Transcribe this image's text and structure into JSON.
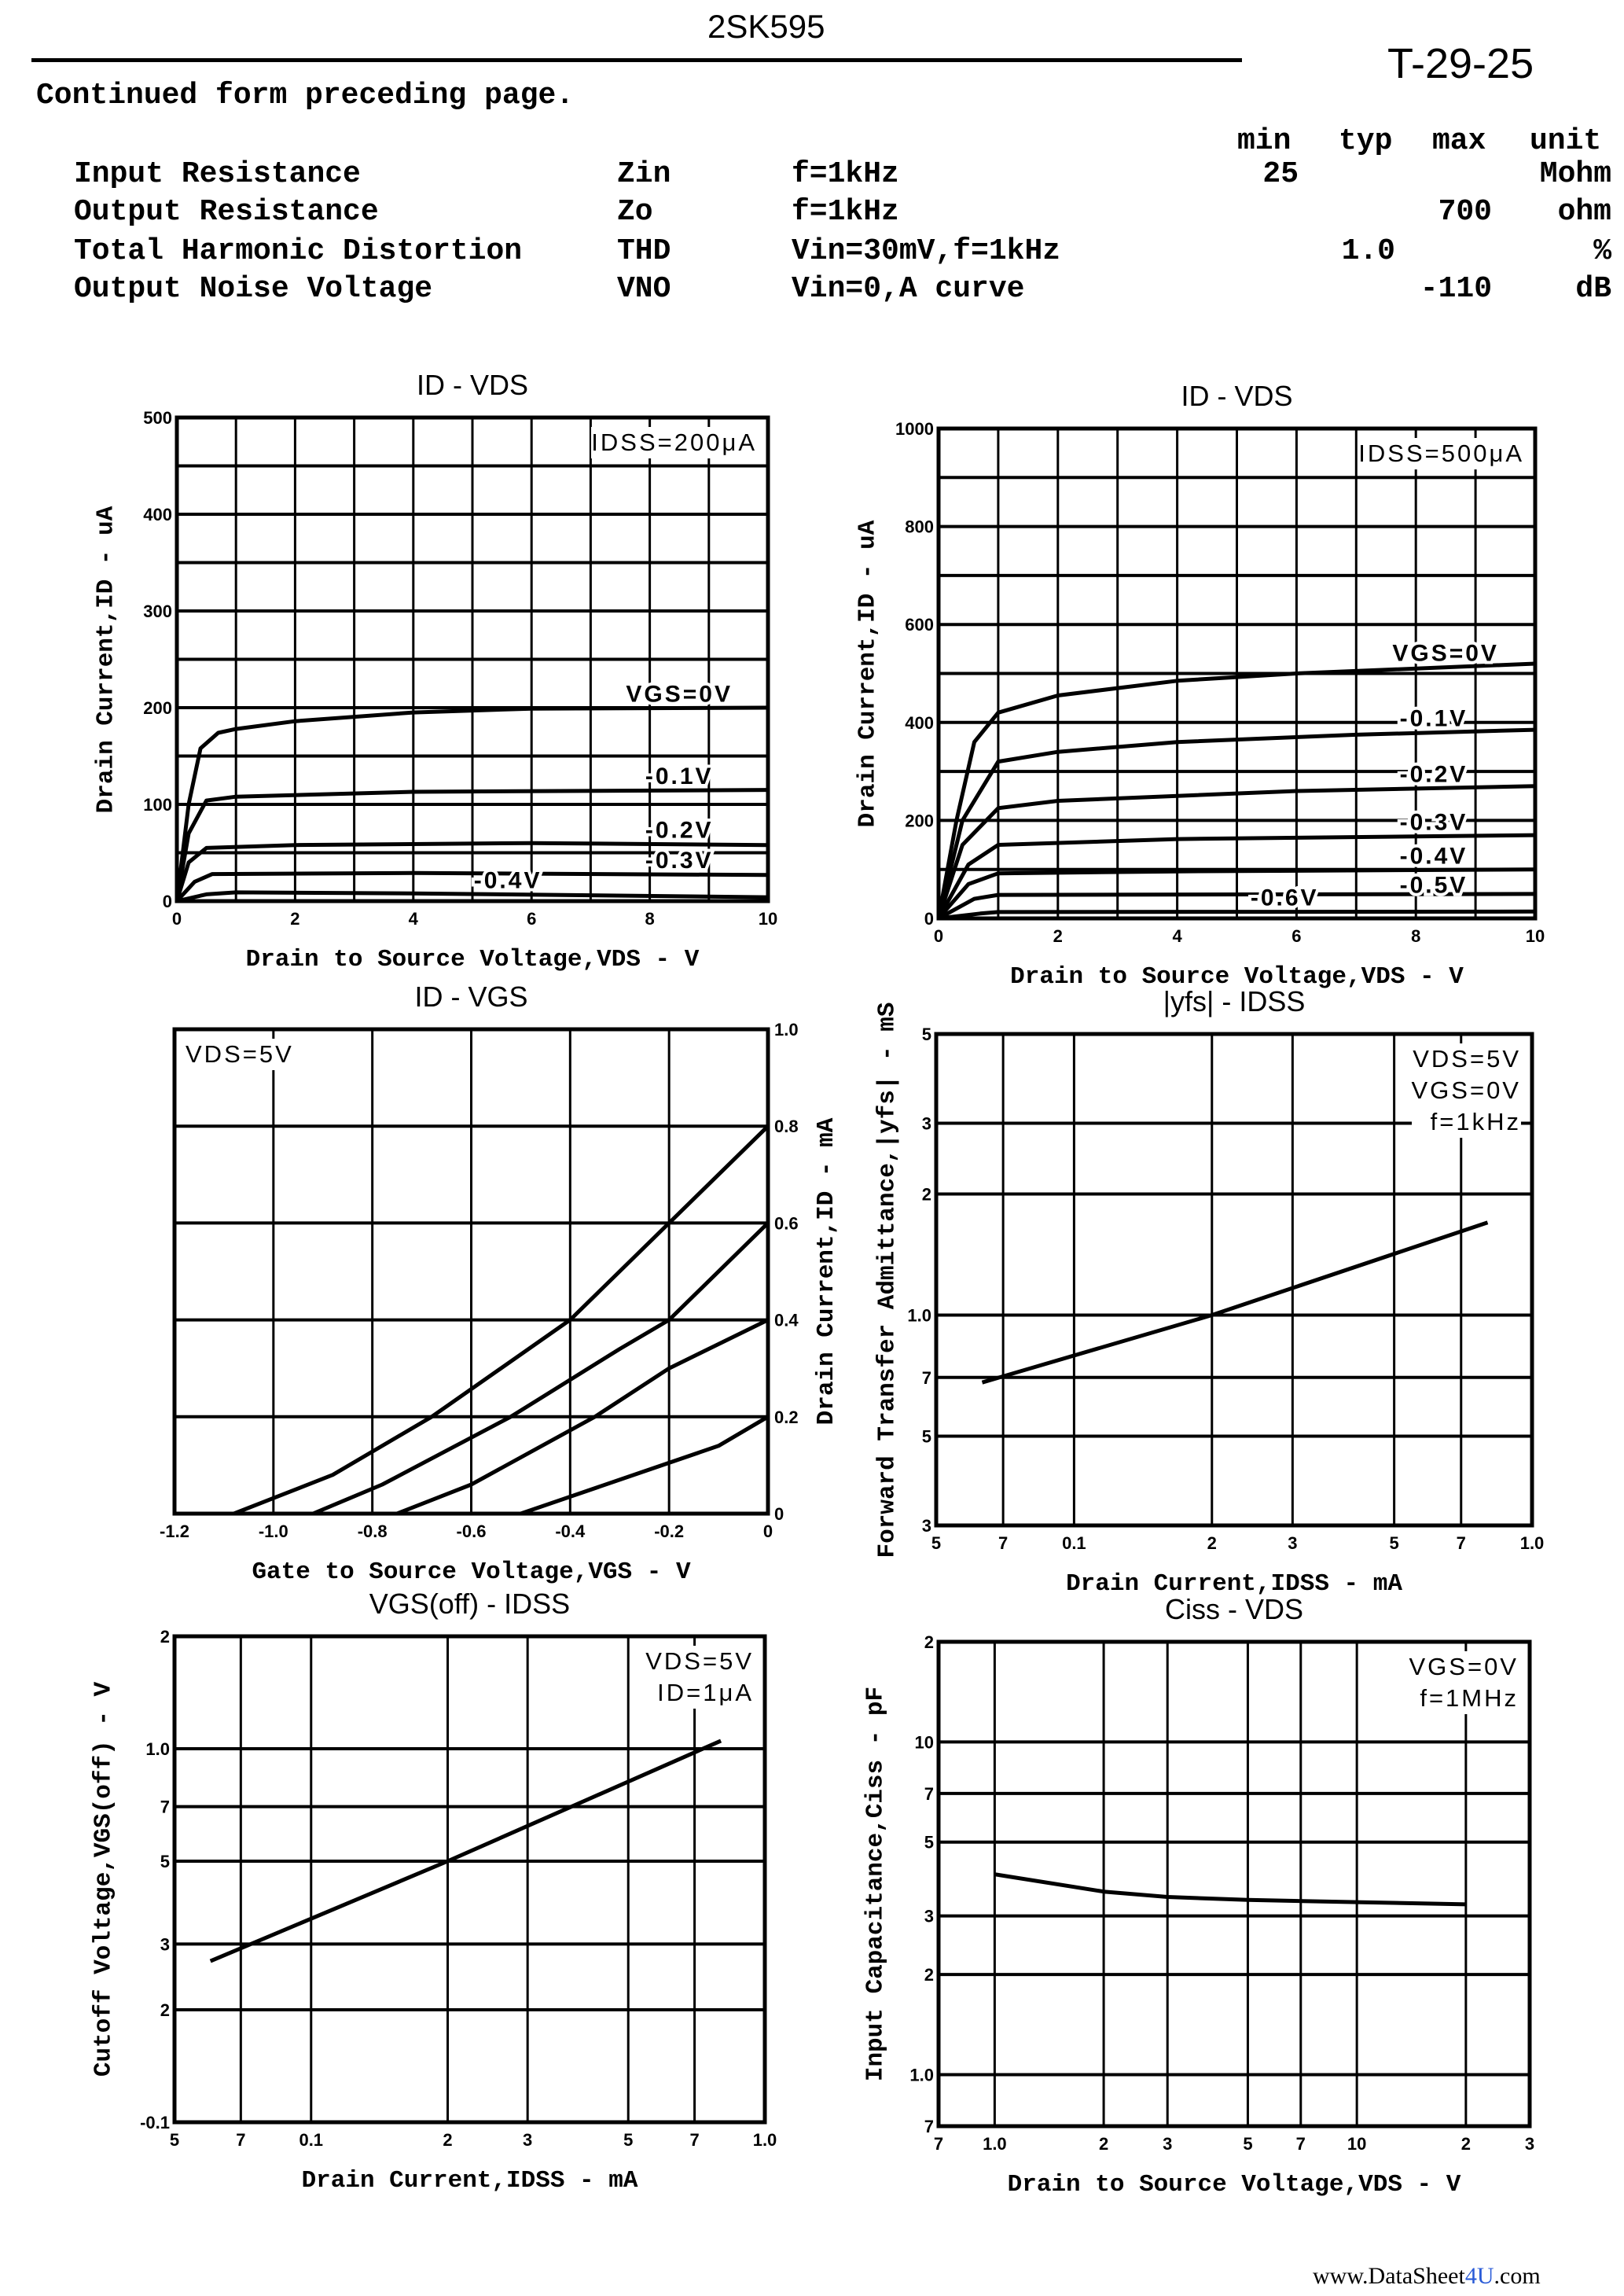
{
  "header": {
    "part_number": "2SK595",
    "doc_code": "T-29-25",
    "continued": "Continued form preceding page."
  },
  "spec_table": {
    "columns": [
      "min",
      "typ",
      "max",
      "unit"
    ],
    "rows": [
      {
        "name": "Input Resistance",
        "symbol": "Zin",
        "condition": "f=1kHz",
        "min": "25",
        "typ": "",
        "max": "",
        "unit": "Mohm"
      },
      {
        "name": "Output Resistance",
        "symbol": "Zo",
        "condition": "f=1kHz",
        "min": "",
        "typ": "",
        "max": "700",
        "unit": "ohm"
      },
      {
        "name": "Total Harmonic Distortion",
        "symbol": "THD",
        "condition": "Vin=30mV,f=1kHz",
        "min": "",
        "typ": "1.0",
        "max": "",
        "unit": "%"
      },
      {
        "name": "Output Noise Voltage",
        "symbol": "VNO",
        "condition": "Vin=0,A curve",
        "min": "",
        "typ": "",
        "max": "-110",
        "unit": "dB"
      }
    ]
  },
  "watermark": {
    "a": "www.DataSheet",
    "b": "4U",
    "c": ".com"
  },
  "chart_data": [
    {
      "type": "line",
      "title": "ID - VDS",
      "xlabel": "Drain to Source Voltage,VDS - V",
      "ylabel": "Drain Current,ID - uA",
      "annotations": [
        "IDSS=200μA"
      ],
      "xscale": "linear",
      "yscale": "linear",
      "xlim": [
        0,
        10
      ],
      "ylim": [
        0,
        500
      ],
      "x_grid": [
        0,
        1,
        2,
        3,
        4,
        5,
        6,
        7,
        8,
        9,
        10
      ],
      "y_grid": [
        0,
        50,
        100,
        150,
        200,
        250,
        300,
        350,
        400,
        450,
        500
      ],
      "x_ticks": [
        [
          0,
          "0"
        ],
        [
          2,
          "2"
        ],
        [
          4,
          "4"
        ],
        [
          6,
          "6"
        ],
        [
          8,
          "8"
        ],
        [
          10,
          "10"
        ]
      ],
      "y_ticks": [
        [
          0,
          "0"
        ],
        [
          100,
          "100"
        ],
        [
          200,
          "200"
        ],
        [
          300,
          "300"
        ],
        [
          400,
          "400"
        ],
        [
          500,
          "500"
        ]
      ],
      "y_side": "left",
      "series": [
        {
          "name": "VGS=0V",
          "label_x": 8.5,
          "points": [
            [
              0,
              0
            ],
            [
              0.2,
              100
            ],
            [
              0.4,
              158
            ],
            [
              0.7,
              174
            ],
            [
              1,
              178
            ],
            [
              2,
              186
            ],
            [
              4,
              195
            ],
            [
              6,
              199
            ],
            [
              10,
              200
            ]
          ]
        },
        {
          "name": "-0.1V",
          "label_x": 8.5,
          "points": [
            [
              0,
              0
            ],
            [
              0.2,
              70
            ],
            [
              0.5,
              104
            ],
            [
              1,
              108
            ],
            [
              4,
              113
            ],
            [
              10,
              115
            ]
          ]
        },
        {
          "name": "-0.2V",
          "label_x": 8.5,
          "points": [
            [
              0,
              0
            ],
            [
              0.2,
              40
            ],
            [
              0.5,
              55
            ],
            [
              2,
              58
            ],
            [
              6,
              60
            ],
            [
              10,
              58
            ]
          ]
        },
        {
          "name": "-0.3V",
          "label_x": 8.5,
          "points": [
            [
              0,
              0
            ],
            [
              0.3,
              20
            ],
            [
              0.6,
              28
            ],
            [
              4,
              29
            ],
            [
              10,
              27
            ]
          ]
        },
        {
          "name": "-0.4V",
          "label_x": 5.6,
          "points": [
            [
              0,
              0
            ],
            [
              0.5,
              7
            ],
            [
              1,
              9
            ],
            [
              4,
              8
            ],
            [
              10,
              4
            ]
          ]
        }
      ]
    },
    {
      "type": "line",
      "title": "ID - VDS",
      "xlabel": "Drain to Source Voltage,VDS - V",
      "ylabel": "Drain Current,ID - uA",
      "annotations": [
        "IDSS=500μA"
      ],
      "xscale": "linear",
      "yscale": "linear",
      "xlim": [
        0,
        10
      ],
      "ylim": [
        0,
        1000
      ],
      "x_grid": [
        0,
        1,
        2,
        3,
        4,
        5,
        6,
        7,
        8,
        9,
        10
      ],
      "y_grid": [
        0,
        100,
        200,
        300,
        400,
        500,
        600,
        700,
        800,
        900,
        1000
      ],
      "x_ticks": [
        [
          0,
          "0"
        ],
        [
          2,
          "2"
        ],
        [
          4,
          "4"
        ],
        [
          6,
          "6"
        ],
        [
          8,
          "8"
        ],
        [
          10,
          "10"
        ]
      ],
      "y_ticks": [
        [
          0,
          "0"
        ],
        [
          200,
          "200"
        ],
        [
          400,
          "400"
        ],
        [
          600,
          "600"
        ],
        [
          800,
          "800"
        ],
        [
          1000,
          "1000"
        ]
      ],
      "y_side": "left",
      "series": [
        {
          "name": "VGS=0V",
          "label_x": 8.5,
          "points": [
            [
              0,
              0
            ],
            [
              0.3,
              200
            ],
            [
              0.6,
              360
            ],
            [
              1,
              420
            ],
            [
              2,
              455
            ],
            [
              4,
              485
            ],
            [
              6,
              500
            ],
            [
              10,
              520
            ]
          ]
        },
        {
          "name": "-0.1V",
          "label_x": 8.3,
          "points": [
            [
              0,
              0
            ],
            [
              0.4,
              200
            ],
            [
              1,
              320
            ],
            [
              2,
              340
            ],
            [
              4,
              360
            ],
            [
              7,
              375
            ],
            [
              10,
              385
            ]
          ]
        },
        {
          "name": "-0.2V",
          "label_x": 8.3,
          "points": [
            [
              0,
              0
            ],
            [
              0.4,
              150
            ],
            [
              1,
              225
            ],
            [
              2,
              240
            ],
            [
              6,
              260
            ],
            [
              10,
              270
            ]
          ]
        },
        {
          "name": "-0.3V",
          "label_x": 8.3,
          "points": [
            [
              0,
              0
            ],
            [
              0.5,
              110
            ],
            [
              1,
              150
            ],
            [
              4,
              162
            ],
            [
              10,
              170
            ]
          ]
        },
        {
          "name": "-0.4V",
          "label_x": 8.3,
          "points": [
            [
              0,
              0
            ],
            [
              0.5,
              70
            ],
            [
              1,
              92
            ],
            [
              4,
              96
            ],
            [
              10,
              100
            ]
          ]
        },
        {
          "name": "-0.5V",
          "label_x": 8.3,
          "points": [
            [
              0,
              0
            ],
            [
              0.6,
              40
            ],
            [
              1,
              48
            ],
            [
              10,
              50
            ]
          ]
        },
        {
          "name": "-0.6V",
          "label_x": 5.8,
          "points": [
            [
              0,
              0
            ],
            [
              0.7,
              10
            ],
            [
              1,
              13
            ],
            [
              10,
              14
            ]
          ]
        }
      ]
    },
    {
      "type": "line",
      "title": "ID - VGS",
      "xlabel": "Gate to Source Voltage,VGS - V",
      "ylabel": "Drain Current,ID - mA",
      "annotations": [
        "VDS=5V"
      ],
      "annot_side": "left",
      "xscale": "linear",
      "yscale": "linear",
      "xlim": [
        -1.2,
        0
      ],
      "ylim": [
        0,
        1.0
      ],
      "x_grid": [
        -1.2,
        -1.0,
        -0.8,
        -0.6,
        -0.4,
        -0.2,
        0
      ],
      "y_grid": [
        0,
        0.2,
        0.4,
        0.6,
        0.8,
        1.0
      ],
      "x_ticks": [
        [
          -1.2,
          "-1.2"
        ],
        [
          -1.0,
          "-1.0"
        ],
        [
          -0.8,
          "-0.8"
        ],
        [
          -0.6,
          "-0.6"
        ],
        [
          -0.4,
          "-0.4"
        ],
        [
          -0.2,
          "-0.2"
        ],
        [
          0,
          "0"
        ]
      ],
      "y_ticks": [
        [
          0,
          "0"
        ],
        [
          0.2,
          "0.2"
        ],
        [
          0.4,
          "0.4"
        ],
        [
          0.6,
          "0.6"
        ],
        [
          0.8,
          "0.8"
        ],
        [
          1.0,
          "1.0"
        ]
      ],
      "y_side": "right",
      "series": [
        {
          "points": [
            [
              -1.2,
              0
            ],
            [
              -1.08,
              0
            ],
            [
              -0.88,
              0.08
            ],
            [
              -0.68,
              0.2
            ],
            [
              -0.4,
              0.4
            ],
            [
              -0.2,
              0.6
            ],
            [
              0,
              0.8
            ]
          ]
        },
        {
          "points": [
            [
              -0.92,
              0
            ],
            [
              -0.78,
              0.06
            ],
            [
              -0.52,
              0.2
            ],
            [
              -0.3,
              0.34
            ],
            [
              -0.2,
              0.4
            ],
            [
              0,
              0.6
            ]
          ]
        },
        {
          "points": [
            [
              -0.75,
              0
            ],
            [
              -0.6,
              0.06
            ],
            [
              -0.35,
              0.2
            ],
            [
              -0.2,
              0.3
            ],
            [
              0,
              0.4
            ]
          ]
        },
        {
          "points": [
            [
              -0.5,
              0
            ],
            [
              -0.3,
              0.07
            ],
            [
              -0.1,
              0.14
            ],
            [
              0,
              0.2
            ]
          ]
        }
      ]
    },
    {
      "type": "line",
      "title": "|yfs| - IDSS",
      "xlabel": "Drain Current,IDSS - mA",
      "ylabel": "Forward Transfer Admittance,|yfs| - mS",
      "annotations": [
        "VDS=5V",
        "VGS=0V",
        "f=1kHz"
      ],
      "xscale": "log",
      "yscale": "log",
      "xlim": [
        0.05,
        1.0
      ],
      "ylim": [
        0.3,
        5
      ],
      "x_grid": [
        0.05,
        0.07,
        0.1,
        0.2,
        0.3,
        0.5,
        0.7,
        1.0
      ],
      "y_grid": [
        0.3,
        0.5,
        0.7,
        1.0,
        2,
        3,
        5
      ],
      "x_ticks": [
        [
          0.05,
          "5"
        ],
        [
          0.07,
          "7"
        ],
        [
          0.1,
          "0.1"
        ],
        [
          0.2,
          "2"
        ],
        [
          0.3,
          "3"
        ],
        [
          0.5,
          "5"
        ],
        [
          0.7,
          "7"
        ],
        [
          1.0,
          "1.0"
        ]
      ],
      "y_ticks": [
        [
          0.3,
          "3"
        ],
        [
          0.5,
          "5"
        ],
        [
          0.7,
          "7"
        ],
        [
          1.0,
          "1.0"
        ],
        [
          2,
          "2"
        ],
        [
          3,
          "3"
        ],
        [
          5,
          "5"
        ]
      ],
      "y_side": "left",
      "series": [
        {
          "points": [
            [
              0.063,
              0.68
            ],
            [
              0.2,
              1.0
            ],
            [
              0.8,
              1.7
            ]
          ]
        }
      ]
    },
    {
      "type": "line",
      "title": "VGS(off) - IDSS",
      "xlabel": "Drain Current,IDSS - mA",
      "ylabel": "Cutoff Voltage,VGS(off) - V",
      "annotations": [
        "VDS=5V",
        "ID=1μA"
      ],
      "xscale": "log",
      "yscale": "log",
      "xlim": [
        0.05,
        1.0
      ],
      "ylim": [
        0.1,
        2
      ],
      "x_grid": [
        0.05,
        0.07,
        0.1,
        0.2,
        0.3,
        0.5,
        0.7,
        1.0
      ],
      "y_grid": [
        0.1,
        0.2,
        0.3,
        0.5,
        0.7,
        1.0,
        2
      ],
      "x_ticks": [
        [
          0.05,
          "5"
        ],
        [
          0.07,
          "7"
        ],
        [
          0.1,
          "0.1"
        ],
        [
          0.2,
          "2"
        ],
        [
          0.3,
          "3"
        ],
        [
          0.5,
          "5"
        ],
        [
          0.7,
          "7"
        ],
        [
          1.0,
          "1.0"
        ]
      ],
      "y_ticks": [
        [
          0.1,
          "-0.1"
        ],
        [
          0.2,
          "2"
        ],
        [
          0.3,
          "3"
        ],
        [
          0.5,
          "5"
        ],
        [
          0.7,
          "7"
        ],
        [
          1.0,
          "1.0"
        ],
        [
          2,
          "2"
        ]
      ],
      "y_side": "left",
      "series": [
        {
          "points": [
            [
              0.06,
              0.27
            ],
            [
              0.2,
              0.5
            ],
            [
              0.8,
              1.05
            ]
          ]
        }
      ]
    },
    {
      "type": "line",
      "title": "Ciss - VDS",
      "xlabel": "Drain to Source Voltage,VDS - V",
      "ylabel": "Input Capacitance,Ciss - pF",
      "annotations": [
        "VGS=0V",
        "f=1MHz"
      ],
      "xscale": "log",
      "yscale": "log",
      "xlim": [
        0.7,
        30
      ],
      "ylim": [
        0.7,
        20
      ],
      "x_grid": [
        0.7,
        1,
        2,
        3,
        5,
        7,
        10,
        20,
        30
      ],
      "y_grid": [
        0.7,
        1,
        2,
        3,
        5,
        7,
        10,
        20
      ],
      "x_ticks": [
        [
          0.7,
          "7"
        ],
        [
          1,
          "1.0"
        ],
        [
          2,
          "2"
        ],
        [
          3,
          "3"
        ],
        [
          5,
          "5"
        ],
        [
          7,
          "7"
        ],
        [
          10,
          "10"
        ],
        [
          20,
          "2"
        ],
        [
          30,
          "3"
        ]
      ],
      "y_ticks": [
        [
          0.7,
          "7"
        ],
        [
          1,
          "1.0"
        ],
        [
          2,
          "2"
        ],
        [
          3,
          "3"
        ],
        [
          5,
          "5"
        ],
        [
          7,
          "7"
        ],
        [
          10,
          "10"
        ],
        [
          20,
          "2"
        ]
      ],
      "y_side": "left",
      "series": [
        {
          "points": [
            [
              1,
              4.0
            ],
            [
              2,
              3.55
            ],
            [
              3,
              3.42
            ],
            [
              5,
              3.35
            ],
            [
              10,
              3.3
            ],
            [
              20,
              3.25
            ]
          ]
        }
      ]
    }
  ]
}
